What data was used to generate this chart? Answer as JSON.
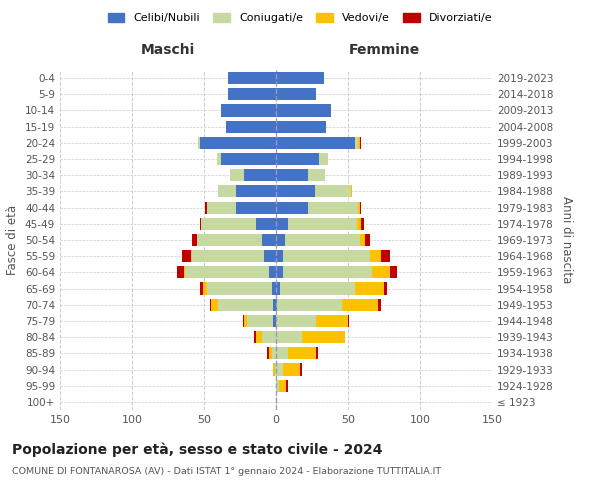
{
  "age_groups": [
    "100+",
    "95-99",
    "90-94",
    "85-89",
    "80-84",
    "75-79",
    "70-74",
    "65-69",
    "60-64",
    "55-59",
    "50-54",
    "45-49",
    "40-44",
    "35-39",
    "30-34",
    "25-29",
    "20-24",
    "15-19",
    "10-14",
    "5-9",
    "0-4"
  ],
  "birth_years": [
    "≤ 1923",
    "1924-1928",
    "1929-1933",
    "1934-1938",
    "1939-1943",
    "1944-1948",
    "1949-1953",
    "1954-1958",
    "1959-1963",
    "1964-1968",
    "1969-1973",
    "1974-1978",
    "1979-1983",
    "1984-1988",
    "1989-1993",
    "1994-1998",
    "1999-2003",
    "2004-2008",
    "2009-2013",
    "2014-2018",
    "2019-2023"
  ],
  "male": {
    "celibi": [
      0,
      0,
      0,
      0,
      0,
      2,
      2,
      3,
      5,
      8,
      10,
      14,
      28,
      28,
      22,
      38,
      53,
      35,
      38,
      33,
      33
    ],
    "coniugati": [
      0,
      0,
      1,
      3,
      10,
      18,
      38,
      45,
      58,
      50,
      45,
      38,
      20,
      12,
      10,
      3,
      1,
      0,
      0,
      0,
      0
    ],
    "vedovi": [
      0,
      0,
      1,
      2,
      4,
      2,
      5,
      3,
      1,
      1,
      0,
      0,
      0,
      0,
      0,
      0,
      0,
      0,
      0,
      0,
      0
    ],
    "divorziati": [
      0,
      0,
      0,
      1,
      1,
      1,
      1,
      2,
      5,
      6,
      3,
      1,
      1,
      0,
      0,
      0,
      0,
      0,
      0,
      0,
      0
    ]
  },
  "female": {
    "nubili": [
      0,
      0,
      0,
      0,
      0,
      0,
      1,
      3,
      5,
      5,
      6,
      8,
      22,
      27,
      22,
      30,
      55,
      35,
      38,
      28,
      33
    ],
    "coniugate": [
      0,
      2,
      5,
      8,
      18,
      28,
      45,
      52,
      62,
      60,
      52,
      48,
      35,
      25,
      12,
      6,
      2,
      0,
      0,
      0,
      0
    ],
    "vedove": [
      0,
      5,
      12,
      20,
      30,
      22,
      25,
      20,
      12,
      8,
      4,
      3,
      1,
      1,
      0,
      0,
      1,
      0,
      0,
      0,
      0
    ],
    "divorziate": [
      0,
      1,
      1,
      1,
      0,
      1,
      2,
      2,
      5,
      6,
      3,
      2,
      1,
      0,
      0,
      0,
      1,
      0,
      0,
      0,
      0
    ]
  },
  "colors": {
    "celibi": "#4472c4",
    "coniugati": "#c5d9a0",
    "vedovi": "#ffc000",
    "divorziati": "#c00000"
  },
  "xlim": 150,
  "title": "Popolazione per età, sesso e stato civile - 2024",
  "subtitle": "COMUNE DI FONTANAROSA (AV) - Dati ISTAT 1° gennaio 2024 - Elaborazione TUTTITALIA.IT",
  "ylabel_left": "Fasce di età",
  "ylabel_right": "Anni di nascita",
  "label_maschi": "Maschi",
  "label_femmine": "Femmine",
  "legend_labels": [
    "Celibi/Nubili",
    "Coniugati/e",
    "Vedovi/e",
    "Divorziati/e"
  ],
  "bg_color": "#ffffff",
  "grid_color": "#cccccc"
}
